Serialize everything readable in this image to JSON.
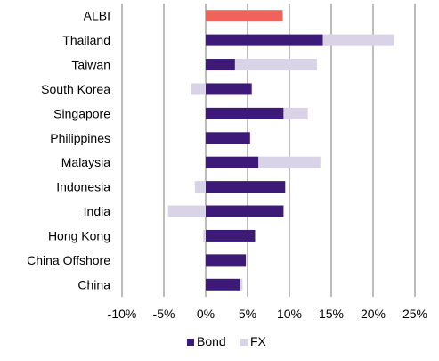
{
  "chart_data": {
    "type": "bar",
    "orientation": "horizontal",
    "stacked": true,
    "categories": [
      "ALBI",
      "Thailand",
      "Taiwan",
      "South Korea",
      "Singapore",
      "Philippines",
      "Malaysia",
      "Indonesia",
      "India",
      "Hong Kong",
      "China Offshore",
      "China"
    ],
    "series": [
      {
        "name": "Bond",
        "color": "#3d1a78",
        "values": [
          null,
          14.0,
          3.5,
          5.5,
          9.3,
          5.3,
          6.3,
          9.5,
          9.3,
          5.9,
          4.8,
          4.1
        ]
      },
      {
        "name": "FX",
        "color": "#d9d3e8",
        "values": [
          null,
          8.5,
          9.8,
          -1.7,
          2.9,
          0.0,
          7.4,
          -1.3,
          -4.5,
          -0.3,
          0.0,
          0.3
        ]
      }
    ],
    "highlight": {
      "category": "ALBI",
      "value": 9.2,
      "color": "#f0625a"
    },
    "xlim": [
      -10,
      25
    ],
    "xticks": [
      "-10%",
      "-5%",
      "0%",
      "5%",
      "10%",
      "15%",
      "20%",
      "25%"
    ],
    "grid": true,
    "legend": {
      "placement": "bottom",
      "entries": [
        "Bond",
        "FX"
      ]
    }
  }
}
